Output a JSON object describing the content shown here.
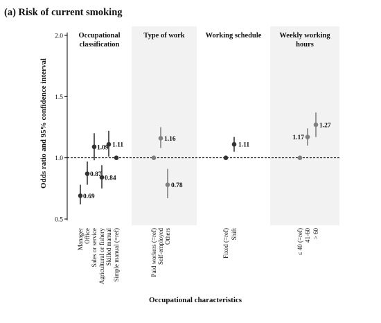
{
  "chart_data": {
    "type": "scatter",
    "title": "(a) Risk of current smoking",
    "xlabel": "Occupational characteristics",
    "ylabel": "Odds ratio and 95% confidence interval",
    "ylim": [
      0.45,
      2.1
    ],
    "yticks": [
      "0.5",
      "1.0",
      "1.5",
      "2.0"
    ],
    "reference_line": 1.0,
    "panels": [
      {
        "title": [
          "Occupational",
          "classification"
        ],
        "shaded": false,
        "color": "#333333",
        "points": [
          {
            "category": "Manager",
            "value": 0.69,
            "lower": 0.62,
            "upper": 0.78,
            "label": "0.69"
          },
          {
            "category": "Office",
            "value": 0.87,
            "lower": 0.78,
            "upper": 0.97,
            "label": "0.87"
          },
          {
            "category": "Sales or service",
            "value": 1.09,
            "lower": 0.98,
            "upper": 1.2,
            "label": "1.09"
          },
          {
            "category": "Agricultural or fishery",
            "value": 0.84,
            "lower": 0.75,
            "upper": 0.94,
            "label": "0.84"
          },
          {
            "category": "Skilled manual",
            "value": 1.11,
            "lower": 1.01,
            "upper": 1.22,
            "label": "1.11"
          },
          {
            "category": "Simple manual (=ref)",
            "value": 1.0,
            "lower": null,
            "upper": null,
            "label": ""
          }
        ]
      },
      {
        "title": [
          "Type of work"
        ],
        "shaded": true,
        "color": "#808080",
        "points": [
          {
            "category": "Paid workers (=ref)",
            "value": 1.0,
            "lower": null,
            "upper": null,
            "label": ""
          },
          {
            "category": "Self-employed",
            "value": 1.16,
            "lower": 1.08,
            "upper": 1.25,
            "label": "1.16"
          },
          {
            "category": "Others",
            "value": 0.78,
            "lower": 0.67,
            "upper": 0.91,
            "label": "0.78"
          }
        ]
      },
      {
        "title": [
          "Working schedule"
        ],
        "shaded": false,
        "color": "#333333",
        "points": [
          {
            "category": "Fixed (=ref)",
            "value": 1.0,
            "lower": null,
            "upper": null,
            "label": ""
          },
          {
            "category": "Shift",
            "value": 1.11,
            "lower": 1.05,
            "upper": 1.17,
            "label": "1.11"
          }
        ]
      },
      {
        "title": [
          "Weekly working",
          "hours"
        ],
        "shaded": true,
        "color": "#808080",
        "points": [
          {
            "category": "≤ 40 (=ref)",
            "value": 1.0,
            "lower": null,
            "upper": null,
            "label": ""
          },
          {
            "category": "41-60",
            "value": 1.17,
            "lower": 1.1,
            "upper": 1.24,
            "label": "1.17"
          },
          {
            "category": "> 60",
            "value": 1.27,
            "lower": 1.17,
            "upper": 1.37,
            "label": "1.27"
          }
        ]
      }
    ]
  }
}
